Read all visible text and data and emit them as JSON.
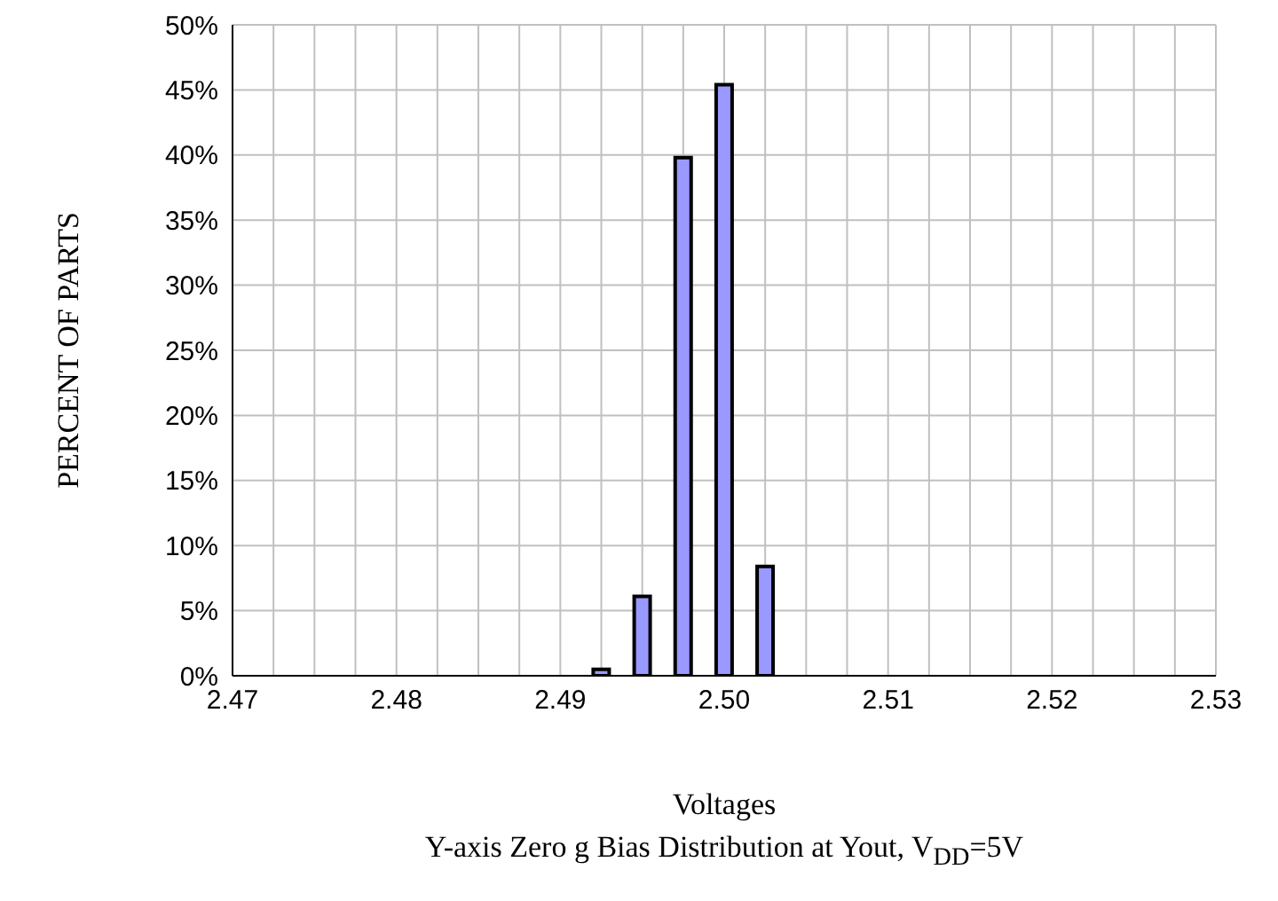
{
  "chart_data": {
    "type": "bar",
    "title": "Y-axis Zero g Bias Distribution at Yout, V$_{DD}$=5V",
    "xlabel": "Voltages",
    "ylabel": "PERCENT OF PARTS",
    "x": [
      2.4925,
      2.495,
      2.4975,
      2.5,
      2.5025
    ],
    "values": [
      0.5,
      6.1,
      39.8,
      45.4,
      8.4
    ],
    "color": "#9999ff",
    "xlim": [
      2.47,
      2.53
    ],
    "xticks": [
      {
        "value": 2.47,
        "label": "2.47"
      },
      {
        "value": 2.4725,
        "label": null
      },
      {
        "value": 2.475,
        "label": null
      },
      {
        "value": 2.4775,
        "label": null
      },
      {
        "value": 2.48,
        "label": "2.48"
      },
      {
        "value": 2.4825,
        "label": null
      },
      {
        "value": 2.485,
        "label": null
      },
      {
        "value": 2.4875,
        "label": null
      },
      {
        "value": 2.49,
        "label": "2.49"
      },
      {
        "value": 2.4925,
        "label": null
      },
      {
        "value": 2.495,
        "label": null
      },
      {
        "value": 2.4975,
        "label": null
      },
      {
        "value": 2.5,
        "label": "2.50"
      },
      {
        "value": 2.5025,
        "label": null
      },
      {
        "value": 2.505,
        "label": null
      },
      {
        "value": 2.5075,
        "label": null
      },
      {
        "value": 2.51,
        "label": "2.51"
      },
      {
        "value": 2.5125,
        "label": null
      },
      {
        "value": 2.515,
        "label": null
      },
      {
        "value": 2.5175,
        "label": null
      },
      {
        "value": 2.52,
        "label": "2.52"
      },
      {
        "value": 2.5225,
        "label": null
      },
      {
        "value": 2.525,
        "label": null
      },
      {
        "value": 2.5275,
        "label": null
      },
      {
        "value": 2.53,
        "label": "2.53"
      }
    ],
    "ylim": [
      0,
      50
    ],
    "yticks": [
      {
        "value": 0,
        "label": "0%"
      },
      {
        "value": 5,
        "label": "5%"
      },
      {
        "value": 10,
        "label": "10%"
      },
      {
        "value": 15,
        "label": "15%"
      },
      {
        "value": 20,
        "label": "20%"
      },
      {
        "value": 25,
        "label": "25%"
      },
      {
        "value": 30,
        "label": "30%"
      },
      {
        "value": 35,
        "label": "35%"
      },
      {
        "value": 40,
        "label": "40%"
      },
      {
        "value": 45,
        "label": "45%"
      },
      {
        "value": 50,
        "label": "50%"
      }
    ],
    "grid": true,
    "legend": false
  }
}
